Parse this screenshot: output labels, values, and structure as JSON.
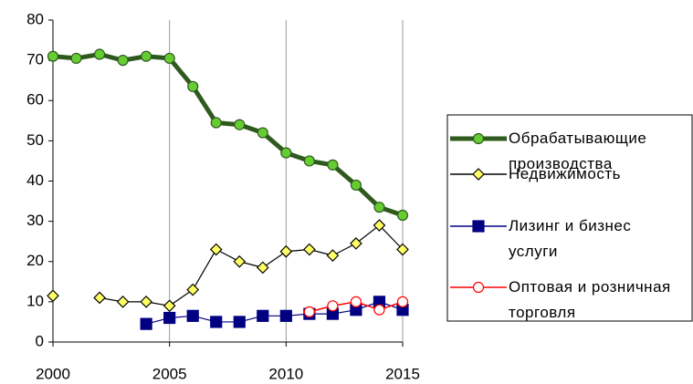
{
  "chart_data": {
    "type": "line",
    "x": [
      2000,
      2001,
      2002,
      2003,
      2004,
      2005,
      2006,
      2007,
      2008,
      2009,
      2010,
      2011,
      2012,
      2013,
      2014,
      2015
    ],
    "xlim": [
      2000,
      2015
    ],
    "xticks": [
      2000,
      2005,
      2010,
      2015
    ],
    "ylim": [
      0,
      80
    ],
    "yticks": [
      0,
      10,
      20,
      30,
      40,
      50,
      60,
      70,
      80
    ],
    "grid": "x",
    "legend": "right",
    "series": [
      {
        "name": "Обрабатывающие производства",
        "color": "#2f5a1e",
        "marker": "circle",
        "marker_fill": "#66cc33",
        "values": [
          71,
          70.5,
          71.5,
          70,
          71,
          70.5,
          63.5,
          54.5,
          54,
          52,
          47,
          45,
          44,
          39,
          33.5,
          31.5
        ]
      },
      {
        "name": "Недвижимость",
        "color": "#000000",
        "marker": "diamond",
        "marker_fill": "#ffff66",
        "values": [
          11.5,
          null,
          11,
          10,
          10,
          9,
          13,
          23,
          20,
          18.5,
          22.5,
          23,
          21.5,
          24.5,
          29,
          23
        ]
      },
      {
        "name": "Лизинг и бизнес услуги",
        "color": "#000080",
        "marker": "square",
        "marker_fill": "#000080",
        "values": [
          null,
          null,
          null,
          null,
          4.5,
          6,
          6.5,
          5,
          5,
          6.5,
          6.5,
          7,
          7,
          8,
          10,
          8
        ]
      },
      {
        "name": "Оптовая и розничная торговля",
        "color": "#ff0000",
        "marker": "circle",
        "marker_fill": "#ffffff",
        "values": [
          null,
          null,
          null,
          null,
          null,
          null,
          null,
          null,
          null,
          null,
          null,
          7.5,
          9,
          10,
          8,
          10
        ]
      }
    ]
  }
}
